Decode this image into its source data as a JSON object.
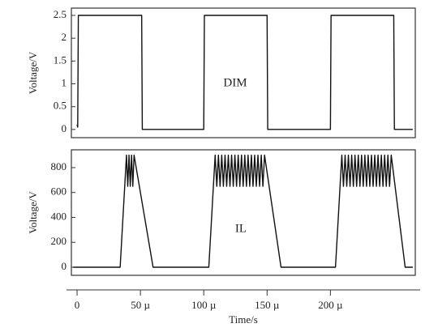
{
  "chart_data": [
    {
      "type": "line",
      "ylabel": "Voltage/V",
      "annotation": "DIM",
      "color": "#111111",
      "xlim": [
        -4.5,
        267
      ],
      "ylim": [
        -0.18,
        2.66
      ],
      "yticks": [
        0,
        0.5,
        1,
        1.5,
        2,
        2.5
      ],
      "x": [
        0,
        0.5,
        1,
        51,
        51.5,
        100,
        100.5,
        150,
        150.5,
        200,
        200.5,
        250,
        250.5,
        265
      ],
      "values": [
        0.1,
        0.05,
        2.5,
        2.5,
        0,
        0,
        2.5,
        2.5,
        0,
        0,
        2.5,
        2.5,
        0,
        0
      ]
    },
    {
      "type": "line",
      "ylabel": "Voltage/V",
      "annotation": "IL",
      "color": "#111111",
      "xlabel": "Time/s",
      "xlim": [
        -4.5,
        267
      ],
      "ylim": [
        -65,
        943
      ],
      "yticks": [
        0,
        200,
        400,
        600,
        800
      ],
      "xticks": [
        0,
        {
          "value": 50,
          "label": "50 µ"
        },
        {
          "value": 100,
          "label": "100 µ"
        },
        {
          "value": 150,
          "label": "150 µ"
        },
        {
          "value": 200,
          "label": "200 µ"
        }
      ],
      "x": [
        -3,
        34,
        39,
        40,
        41,
        42,
        43,
        44,
        45,
        60,
        104,
        109,
        110.3,
        111.6,
        112.9,
        114.2,
        115.5,
        116.8,
        118.1,
        119.4,
        120.7,
        122,
        123.3,
        124.6,
        125.9,
        127.2,
        128.5,
        129.8,
        131.1,
        132.4,
        133.7,
        135,
        136.3,
        137.6,
        138.9,
        140.2,
        141.5,
        142.8,
        144.1,
        145.4,
        146.7,
        148,
        161,
        204,
        209,
        210.3,
        211.6,
        212.9,
        214.2,
        215.5,
        216.8,
        218.1,
        219.4,
        220.7,
        222,
        223.3,
        224.6,
        225.9,
        227.2,
        228.5,
        229.8,
        231.1,
        232.4,
        233.7,
        235,
        236.3,
        237.6,
        238.9,
        240.2,
        241.5,
        242.8,
        244.1,
        245.4,
        246.7,
        248,
        259,
        265
      ],
      "values": [
        0,
        0,
        900,
        650,
        900,
        650,
        900,
        650,
        900,
        0,
        0,
        900,
        650,
        900,
        650,
        900,
        650,
        900,
        650,
        900,
        650,
        900,
        650,
        900,
        650,
        900,
        650,
        900,
        650,
        900,
        650,
        900,
        650,
        900,
        650,
        900,
        650,
        900,
        650,
        900,
        650,
        900,
        0,
        0,
        900,
        650,
        900,
        650,
        900,
        650,
        900,
        650,
        900,
        650,
        900,
        650,
        900,
        650,
        900,
        650,
        900,
        650,
        900,
        650,
        900,
        650,
        900,
        650,
        900,
        650,
        900,
        650,
        900,
        650,
        900,
        0,
        0
      ]
    }
  ]
}
